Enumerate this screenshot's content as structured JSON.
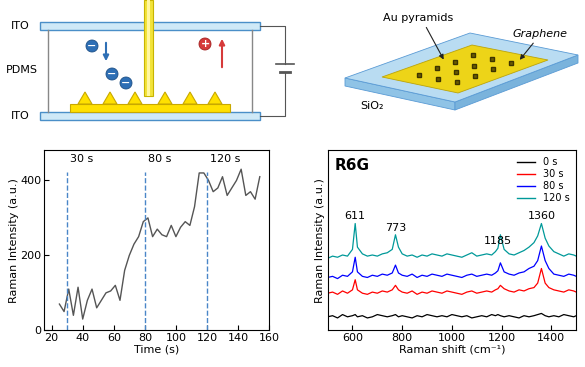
{
  "cell_diagram": {
    "top_plate": "ITO",
    "bottom_plate": "ITO",
    "medium": "PDMS",
    "negative_ion": "−",
    "positive_ion": "+"
  },
  "substrate_diagram": {
    "pyramids": "Au pyramids",
    "film": "Graphene",
    "substrate": "SiO₂"
  },
  "chart_data": [
    {
      "type": "line",
      "x_label": "Time (s)",
      "y_label": "Raman Intensity (a.u.)",
      "x": [
        25,
        28,
        31,
        34,
        37,
        40,
        43,
        46,
        49,
        52,
        55,
        58,
        61,
        64,
        67,
        70,
        73,
        76,
        79,
        82,
        85,
        88,
        91,
        94,
        97,
        100,
        103,
        106,
        109,
        112,
        115,
        118,
        121,
        124,
        127,
        130,
        133,
        136,
        139,
        142,
        145,
        148,
        151,
        154
      ],
      "values": [
        70,
        50,
        110,
        40,
        115,
        30,
        80,
        110,
        60,
        80,
        100,
        105,
        120,
        80,
        160,
        200,
        230,
        250,
        290,
        300,
        250,
        270,
        255,
        250,
        280,
        250,
        275,
        290,
        280,
        330,
        420,
        420,
        400,
        370,
        380,
        410,
        360,
        380,
        400,
        430,
        360,
        370,
        350,
        410
      ],
      "color": "#555555",
      "xlim": [
        15,
        160
      ],
      "xticks": [
        20,
        40,
        60,
        80,
        100,
        120,
        140,
        160
      ],
      "ylim": [
        0,
        480
      ],
      "yticks": [
        0,
        200,
        400
      ],
      "annotations": [
        {
          "x": 30,
          "label": "30 s"
        },
        {
          "x": 80,
          "label": "80 s"
        },
        {
          "x": 120,
          "label": "120 s"
        }
      ]
    },
    {
      "type": "line",
      "title": "R6G",
      "x_label": "Raman shift (cm⁻¹)",
      "y_label": "Raman Intensity (a.u.)",
      "x": [
        500,
        520,
        540,
        560,
        580,
        600,
        611,
        620,
        640,
        660,
        680,
        700,
        720,
        740,
        760,
        773,
        785,
        800,
        820,
        840,
        860,
        880,
        900,
        920,
        940,
        960,
        980,
        1000,
        1020,
        1040,
        1060,
        1080,
        1100,
        1120,
        1140,
        1160,
        1175,
        1185,
        1195,
        1210,
        1230,
        1250,
        1270,
        1290,
        1310,
        1330,
        1345,
        1360,
        1375,
        1390,
        1410,
        1430,
        1450,
        1470,
        1490,
        1500
      ],
      "series": [
        {
          "name": "0 s",
          "color": "#000000",
          "values": [
            12,
            13,
            11,
            14,
            12,
            13,
            14,
            12,
            13,
            11,
            12,
            14,
            13,
            12,
            13,
            14,
            12,
            13,
            12,
            11,
            13,
            12,
            14,
            13,
            12,
            13,
            12,
            14,
            13,
            12,
            13,
            11,
            12,
            13,
            12,
            14,
            13,
            14,
            13,
            12,
            13,
            12,
            11,
            13,
            12,
            13,
            14,
            15,
            13,
            12,
            13,
            12,
            14,
            13,
            12,
            13
          ]
        },
        {
          "name": "30 s",
          "color": "#ff0000",
          "values": [
            33,
            34,
            32,
            35,
            33,
            36,
            45,
            36,
            33,
            32,
            34,
            33,
            35,
            34,
            36,
            40,
            36,
            34,
            33,
            35,
            32,
            34,
            33,
            35,
            34,
            33,
            35,
            34,
            33,
            32,
            34,
            35,
            33,
            34,
            35,
            34,
            36,
            37,
            40,
            37,
            35,
            34,
            36,
            35,
            37,
            38,
            42,
            55,
            42,
            38,
            36,
            35,
            34,
            36,
            35,
            34
          ]
        },
        {
          "name": "80 s",
          "color": "#0000ff",
          "values": [
            47,
            48,
            46,
            49,
            48,
            52,
            65,
            52,
            48,
            47,
            49,
            48,
            50,
            49,
            51,
            58,
            51,
            49,
            48,
            50,
            47,
            49,
            48,
            50,
            49,
            48,
            50,
            49,
            48,
            47,
            49,
            50,
            48,
            49,
            50,
            49,
            51,
            53,
            60,
            52,
            50,
            49,
            51,
            52,
            55,
            57,
            62,
            75,
            62,
            55,
            50,
            49,
            48,
            50,
            49,
            48
          ]
        },
        {
          "name": "120 s",
          "color": "#009999",
          "values": [
            64,
            66,
            65,
            67,
            66,
            72,
            95,
            74,
            68,
            66,
            67,
            66,
            68,
            69,
            72,
            85,
            74,
            68,
            66,
            67,
            65,
            67,
            66,
            68,
            67,
            66,
            68,
            67,
            66,
            65,
            67,
            69,
            66,
            67,
            68,
            67,
            70,
            73,
            85,
            72,
            68,
            67,
            69,
            71,
            74,
            78,
            84,
            95,
            82,
            75,
            70,
            68,
            66,
            68,
            67,
            66
          ]
        }
      ],
      "xlim": [
        500,
        1500
      ],
      "xticks": [
        600,
        800,
        1000,
        1200,
        1400
      ],
      "ylim": [
        0,
        160
      ],
      "tick_labels": "x",
      "legend": "upper right",
      "annotations": [
        {
          "x": 611,
          "label": "611"
        },
        {
          "x": 773,
          "label": "773"
        },
        {
          "x": 1185,
          "label": "1185"
        },
        {
          "x": 1360,
          "label": "1360"
        }
      ]
    }
  ]
}
